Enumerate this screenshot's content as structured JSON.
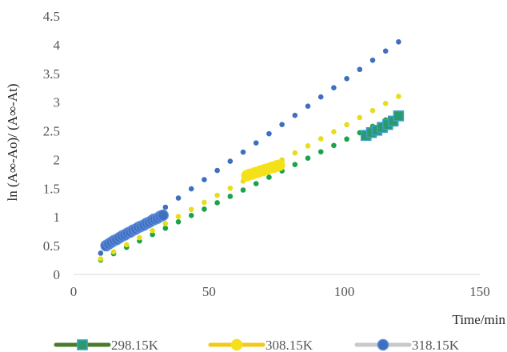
{
  "chart_data": {
    "type": "scatter",
    "title": "",
    "xlabel": "Time/min",
    "ylabel": "ln (A∞-Ao)/ (A∞-At)",
    "xlim": [
      0,
      150
    ],
    "ylim": [
      0,
      4.5
    ],
    "x_ticks": [
      "0",
      "50",
      "100",
      "150"
    ],
    "y_ticks": [
      "0",
      "0.5",
      "1",
      "1.5",
      "2",
      "2.5",
      "3",
      "3.5",
      "4",
      "4.5"
    ],
    "grid": false,
    "legend_position": "bottom",
    "series": [
      {
        "name": "298.15K",
        "color": "#1aa34a",
        "line_color": "#4a7a2a",
        "highlight_marker": "square",
        "highlight_fill": "#2a9a6a",
        "highlight_edge": "#3a9fc8",
        "trend": {
          "x_start": 10,
          "y_start": 0.25,
          "x_end": 120,
          "y_end": 2.8,
          "count": 24
        },
        "points": [
          {
            "x": 108,
            "y": 2.42
          },
          {
            "x": 110,
            "y": 2.47
          },
          {
            "x": 112,
            "y": 2.51
          },
          {
            "x": 114,
            "y": 2.56
          },
          {
            "x": 116,
            "y": 2.61
          },
          {
            "x": 118,
            "y": 2.67
          },
          {
            "x": 120,
            "y": 2.76
          }
        ]
      },
      {
        "name": "308.15K",
        "color": "#e8dd1a",
        "line_color": "#f2c81a",
        "highlight_marker": "circle",
        "highlight_fill": "#f5e11a",
        "highlight_edge": "#f5e11a",
        "trend": {
          "x_start": 10,
          "y_start": 0.27,
          "x_end": 120,
          "y_end": 3.1,
          "count": 24
        },
        "points": [
          {
            "x": 64,
            "y": 1.72
          },
          {
            "x": 65,
            "y": 1.74
          },
          {
            "x": 66,
            "y": 1.75
          },
          {
            "x": 67,
            "y": 1.77
          },
          {
            "x": 68,
            "y": 1.78
          },
          {
            "x": 69,
            "y": 1.8
          },
          {
            "x": 70,
            "y": 1.81
          },
          {
            "x": 71,
            "y": 1.83
          },
          {
            "x": 72,
            "y": 1.84
          },
          {
            "x": 73,
            "y": 1.86
          },
          {
            "x": 74,
            "y": 1.87
          },
          {
            "x": 75,
            "y": 1.89
          },
          {
            "x": 76,
            "y": 1.9
          }
        ]
      },
      {
        "name": "318.15K",
        "color": "#3f6fbf",
        "line_color": "#c8c8c8",
        "highlight_marker": "circle",
        "highlight_fill": "#3f6fbf",
        "highlight_edge": "#5a8ad8",
        "trend": {
          "x_start": 10,
          "y_start": 0.37,
          "x_end": 120,
          "y_end": 4.05,
          "count": 24
        },
        "points": [
          {
            "x": 12,
            "y": 0.5
          },
          {
            "x": 13,
            "y": 0.53
          },
          {
            "x": 14,
            "y": 0.56
          },
          {
            "x": 15,
            "y": 0.59
          },
          {
            "x": 16,
            "y": 0.61
          },
          {
            "x": 17,
            "y": 0.64
          },
          {
            "x": 18,
            "y": 0.67
          },
          {
            "x": 19,
            "y": 0.69
          },
          {
            "x": 20,
            "y": 0.72
          },
          {
            "x": 21,
            "y": 0.74
          },
          {
            "x": 22,
            "y": 0.77
          },
          {
            "x": 23,
            "y": 0.79
          },
          {
            "x": 24,
            "y": 0.82
          },
          {
            "x": 25,
            "y": 0.84
          },
          {
            "x": 26,
            "y": 0.86
          },
          {
            "x": 27,
            "y": 0.89
          },
          {
            "x": 28,
            "y": 0.91
          },
          {
            "x": 29,
            "y": 0.94
          },
          {
            "x": 30,
            "y": 0.96
          },
          {
            "x": 31,
            "y": 0.98
          },
          {
            "x": 32,
            "y": 1.01
          },
          {
            "x": 33,
            "y": 1.03
          }
        ]
      }
    ]
  }
}
